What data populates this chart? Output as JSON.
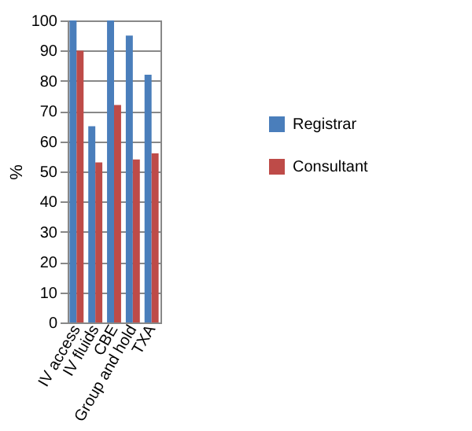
{
  "chart_data": {
    "type": "bar",
    "ylabel": "%",
    "categories": [
      "IV access",
      "IV fluids",
      "CBE",
      "Group and hold",
      "TXA"
    ],
    "series": [
      {
        "name": "Registrar",
        "color": "#4a7ebb",
        "values": [
          100,
          65,
          100,
          95,
          82
        ]
      },
      {
        "name": "Consultant",
        "color": "#be4b48",
        "values": [
          90,
          53,
          72,
          54,
          56
        ]
      }
    ],
    "ylim": [
      0,
      100
    ],
    "yticks": [
      0,
      10,
      20,
      30,
      40,
      50,
      60,
      70,
      80,
      90,
      100
    ],
    "grid": "y",
    "legend": "right"
  }
}
